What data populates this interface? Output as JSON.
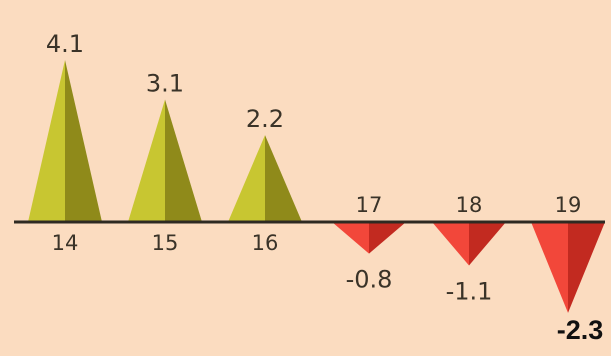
{
  "chart_data": {
    "type": "bar",
    "bar_shape": "triangle",
    "categories": [
      "14",
      "15",
      "16",
      "17",
      "18",
      "19"
    ],
    "values": [
      4.1,
      3.1,
      2.2,
      -0.8,
      -1.1,
      -2.3
    ],
    "value_labels": [
      "4.1",
      "3.1",
      "2.2",
      "-0.8",
      "-1.1",
      "-2.3"
    ],
    "ylim": [
      -2.3,
      4.1
    ],
    "grid": false,
    "legend": "none",
    "colors": {
      "background": "#fbdcc0",
      "positive_light": "#c8c631",
      "positive_dark": "#8f8a1a",
      "negative_light": "#f2473a",
      "negative_dark": "#c22a20",
      "axis": "#2e2a22"
    }
  }
}
